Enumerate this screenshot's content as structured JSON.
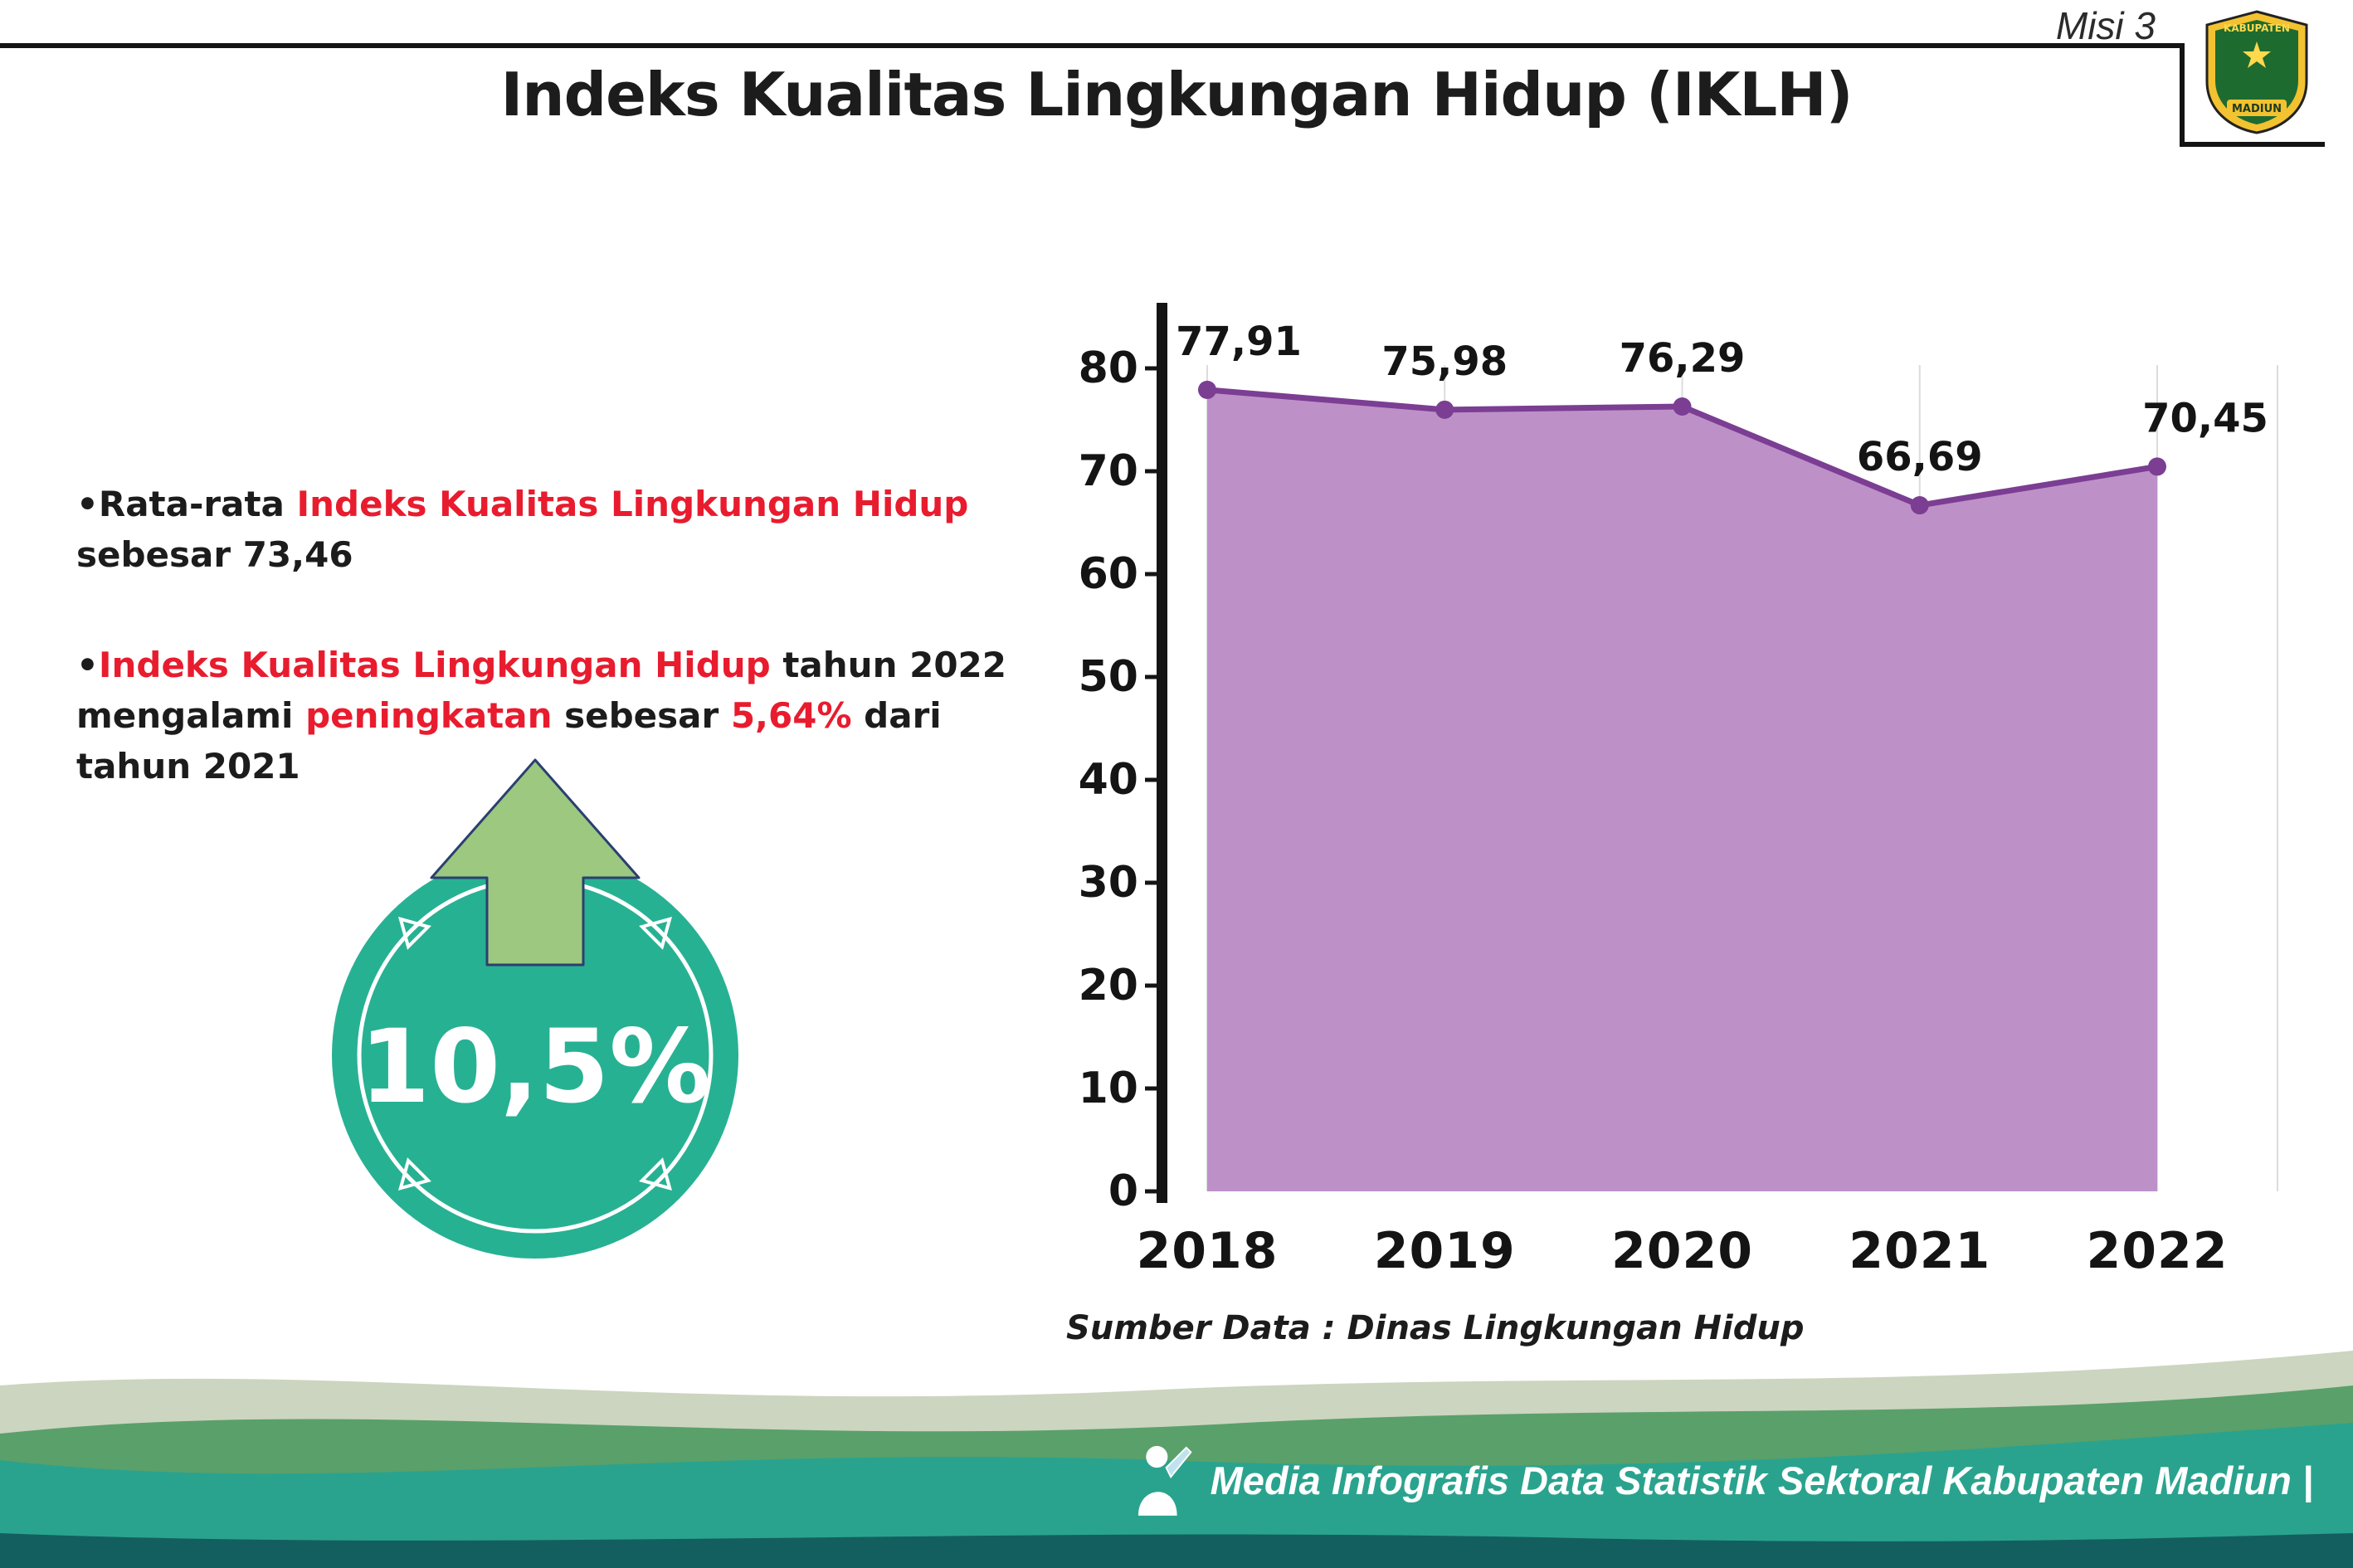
{
  "page": {
    "misi_label": "Misi 3",
    "title": "Indeks Kualitas Lingkungan Hidup (IKLH)",
    "source": "Sumber Data : Dinas Lingkungan Hidup",
    "footer": "Media Infografis Data Statistik Sektoral Kabupaten Madiun |"
  },
  "logo": {
    "top_text": "KABUPATEN",
    "bottom_text": "MADIUN"
  },
  "bullets": [
    {
      "segments": [
        {
          "text": "Rata-rata ",
          "color": "black"
        },
        {
          "text": "Indeks Kualitas Lingkungan Hidup",
          "color": "red"
        },
        {
          "text": " sebesar 73,46",
          "color": "black"
        }
      ]
    },
    {
      "segments": [
        {
          "text": "Indeks Kualitas Lingkungan Hidup",
          "color": "red"
        },
        {
          "text": " tahun 2022 mengalami ",
          "color": "black"
        },
        {
          "text": "peningkatan",
          "color": "red"
        },
        {
          "text": " sebesar ",
          "color": "black"
        },
        {
          "text": "5,64%",
          "color": "red"
        },
        {
          "text": " dari tahun 2021",
          "color": "black"
        }
      ]
    }
  ],
  "highlight": {
    "value": "10,5%"
  },
  "chart_data": {
    "type": "area",
    "categories": [
      "2018",
      "2019",
      "2020",
      "2021",
      "2022"
    ],
    "values": [
      77.91,
      75.98,
      76.29,
      66.69,
      70.45
    ],
    "value_labels": [
      "77,91",
      "75,98",
      "76,29",
      "66,69",
      "70,45"
    ],
    "title": "",
    "xlabel": "",
    "ylabel": "",
    "ylim": [
      0,
      80
    ],
    "yticks": [
      0,
      10,
      20,
      30,
      40,
      50,
      60,
      70,
      80
    ],
    "grid": true,
    "legend": "none",
    "fill_color": "#bd91c8",
    "line_color": "#7b3e93"
  },
  "colors": {
    "title_text": "#1c1c1c",
    "red_text": "#e81c2e",
    "teal_badge": "#27b193",
    "arrow_green": "#9cc87f",
    "arrow_outline": "#2b3f70",
    "wave_pale": "#ccd5bf",
    "wave_green": "#5aa06a",
    "wave_teal": "#2aa38e",
    "wave_dark": "#135f5f",
    "axis_text": "#141414"
  }
}
